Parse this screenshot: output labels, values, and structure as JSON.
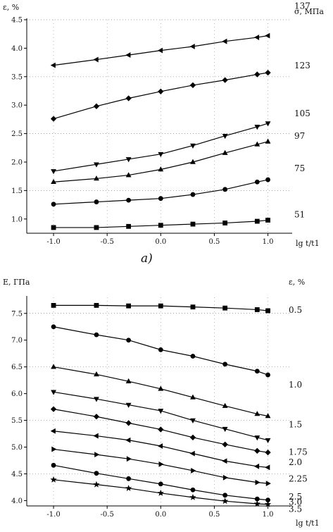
{
  "chart_data": [
    {
      "type": "line",
      "title": "",
      "caption": "a)",
      "ylabel": "ε, %",
      "xlabel": "lg t/t1",
      "legend_title": "σ, МПа",
      "xlim": [
        -1.25,
        1.2
      ],
      "ylim": [
        0.75,
        4.5
      ],
      "xticks": [
        -1.0,
        -0.5,
        0.0,
        0.5,
        1.0
      ],
      "xtick_labels": [
        "-1.0",
        "-0.5",
        "0.0",
        "0.5",
        "1.0"
      ],
      "yticks": [
        1.0,
        1.5,
        2.0,
        2.5,
        3.0,
        3.5,
        4.0,
        4.5
      ],
      "ytick_labels": [
        "1.0",
        "1.5",
        "2.0",
        "2.5",
        "3.0",
        "3.5",
        "4.0",
        "4.5"
      ],
      "grid": "dotted, partial",
      "x": [
        -1.0,
        -0.6,
        -0.3,
        0.0,
        0.3,
        0.6,
        0.9,
        1.0
      ],
      "series": [
        {
          "name": "137",
          "marker": "triangle-left",
          "values": [
            3.7,
            3.8,
            3.88,
            3.96,
            4.03,
            4.12,
            4.19,
            4.22
          ]
        },
        {
          "name": "123",
          "marker": "diamond",
          "values": [
            2.76,
            2.98,
            3.12,
            3.24,
            3.35,
            3.44,
            3.54,
            3.57
          ]
        },
        {
          "name": "105",
          "marker": "triangle-down",
          "values": [
            1.84,
            1.96,
            2.05,
            2.14,
            2.29,
            2.46,
            2.62,
            2.68
          ]
        },
        {
          "name": "97",
          "marker": "triangle-up",
          "values": [
            1.65,
            1.71,
            1.77,
            1.87,
            2.0,
            2.16,
            2.31,
            2.36
          ]
        },
        {
          "name": "75",
          "marker": "circle",
          "values": [
            1.26,
            1.3,
            1.33,
            1.36,
            1.43,
            1.52,
            1.65,
            1.69
          ]
        },
        {
          "name": "51",
          "marker": "square",
          "values": [
            0.85,
            0.85,
            0.87,
            0.89,
            0.91,
            0.93,
            0.96,
            0.98
          ]
        }
      ]
    },
    {
      "type": "line",
      "title": "",
      "ylabel": "E, ГПа",
      "xlabel": "lg t/t1",
      "legend_title": "ε, %",
      "xlim": [
        -1.25,
        1.2
      ],
      "ylim": [
        3.9,
        7.8
      ],
      "xticks": [
        -1.0,
        -0.5,
        0.0,
        0.5,
        1.0
      ],
      "xtick_labels": [
        "-1.0",
        "-0.5",
        "0.0",
        "0.5",
        "1.0"
      ],
      "yticks": [
        4.0,
        4.5,
        5.0,
        5.5,
        6.0,
        6.5,
        7.0,
        7.5
      ],
      "ytick_labels": [
        "4.0",
        "4.5",
        "5.0",
        "5.5",
        "6.0",
        "6.5",
        "7.0",
        "7.5"
      ],
      "grid": "dotted, partial",
      "x": [
        -1.0,
        -0.6,
        -0.3,
        0.0,
        0.3,
        0.6,
        0.9,
        1.0
      ],
      "series": [
        {
          "name": "0.5",
          "marker": "square",
          "values": [
            7.65,
            7.65,
            7.64,
            7.64,
            7.62,
            7.6,
            7.57,
            7.55
          ]
        },
        {
          "name": "1.0",
          "marker": "circle",
          "values": [
            7.25,
            7.1,
            7.0,
            6.82,
            6.7,
            6.55,
            6.42,
            6.35
          ]
        },
        {
          "name": "1.5",
          "marker": "triangle-up",
          "values": [
            6.5,
            6.36,
            6.23,
            6.09,
            5.93,
            5.77,
            5.62,
            5.58
          ]
        },
        {
          "name": "1.75",
          "marker": "triangle-down",
          "values": [
            6.03,
            5.9,
            5.79,
            5.68,
            5.5,
            5.34,
            5.18,
            5.13
          ]
        },
        {
          "name": "2.0",
          "marker": "diamond",
          "values": [
            5.71,
            5.57,
            5.45,
            5.33,
            5.18,
            5.05,
            4.93,
            4.9
          ]
        },
        {
          "name": "2.25",
          "marker": "triangle-left",
          "values": [
            5.3,
            5.21,
            5.13,
            5.02,
            4.88,
            4.74,
            4.64,
            4.62
          ]
        },
        {
          "name": "2.5",
          "marker": "triangle-right",
          "values": [
            4.96,
            4.86,
            4.78,
            4.68,
            4.56,
            4.43,
            4.34,
            4.32
          ]
        },
        {
          "name": "3.0",
          "marker": "circle",
          "values": [
            4.66,
            4.51,
            4.41,
            4.31,
            4.2,
            4.1,
            4.03,
            4.01
          ]
        },
        {
          "name": "3.5",
          "marker": "star",
          "values": [
            4.39,
            4.3,
            4.23,
            4.14,
            4.06,
            3.99,
            3.94,
            3.93
          ]
        }
      ]
    }
  ]
}
